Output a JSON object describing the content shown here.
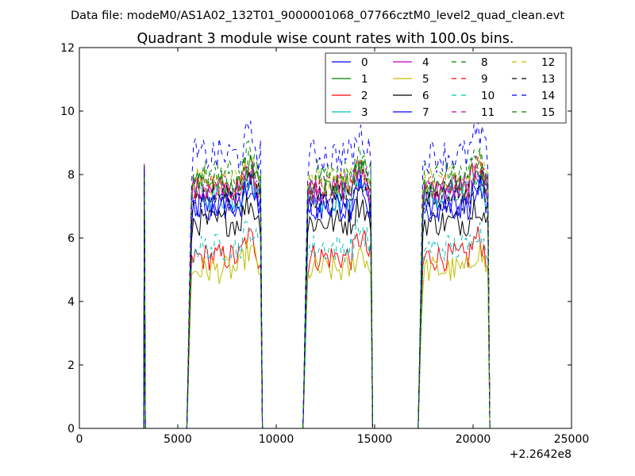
{
  "header": {
    "datafile": "Data file: modeM0/AS1A02_132T01_9000001068_07766cztM0_level2_quad_clean.evt"
  },
  "chart_data": {
    "type": "line",
    "title": "Quadrant 3 module wise count rates with 100.0s bins.",
    "xlabel": "",
    "ylabel": "",
    "x_offset_label": "+2.2642e8",
    "xlim": [
      0,
      25000
    ],
    "ylim": [
      0,
      12
    ],
    "x_ticks": [
      0,
      5000,
      10000,
      15000,
      20000,
      25000
    ],
    "y_ticks": [
      0,
      2,
      4,
      6,
      8,
      10,
      12
    ],
    "x_tick_labels": [
      "0",
      "5000",
      "10000",
      "15000",
      "20000",
      "25000"
    ],
    "y_tick_labels": [
      "0",
      "2",
      "4",
      "6",
      "8",
      "10",
      "12"
    ],
    "grid": false,
    "legend_position": "top-right",
    "legend_columns": 4,
    "segments": [
      {
        "start": 3300,
        "end": 3350,
        "active": [
          3300
        ],
        "spike": 8
      },
      {
        "start": 5500,
        "end": 9300
      },
      {
        "start": 11400,
        "end": 14950
      },
      {
        "start": 17250,
        "end": 20900
      }
    ],
    "series": [
      {
        "name": "0",
        "color": "#0000ff",
        "dash": "solid",
        "level": 7.0,
        "noise": 0.5
      },
      {
        "name": "1",
        "color": "#008000",
        "dash": "solid",
        "level": 7.6,
        "noise": 0.45
      },
      {
        "name": "2",
        "color": "#ff0000",
        "dash": "solid",
        "level": 5.4,
        "noise": 0.45
      },
      {
        "name": "3",
        "color": "#00bfbf",
        "dash": "solid",
        "level": 7.3,
        "noise": 0.5
      },
      {
        "name": "4",
        "color": "#bf00bf",
        "dash": "solid",
        "level": 7.5,
        "noise": 0.45
      },
      {
        "name": "5",
        "color": "#bfbf00",
        "dash": "solid",
        "level": 5.0,
        "noise": 0.45
      },
      {
        "name": "6",
        "color": "#000000",
        "dash": "solid",
        "level": 6.5,
        "noise": 0.45
      },
      {
        "name": "7",
        "color": "#0000ff",
        "dash": "solid",
        "level": 7.0,
        "noise": 0.45
      },
      {
        "name": "8",
        "color": "#008000",
        "dash": "dashed",
        "level": 8.0,
        "noise": 0.5
      },
      {
        "name": "9",
        "color": "#ff0000",
        "dash": "dashed",
        "level": 7.6,
        "noise": 0.45
      },
      {
        "name": "10",
        "color": "#00bfbf",
        "dash": "dashed",
        "level": 5.7,
        "noise": 0.45
      },
      {
        "name": "11",
        "color": "#bf00bf",
        "dash": "dashed",
        "level": 7.6,
        "noise": 0.45
      },
      {
        "name": "12",
        "color": "#bfbf00",
        "dash": "dashed",
        "level": 7.8,
        "noise": 0.45
      },
      {
        "name": "13",
        "color": "#000000",
        "dash": "dashed",
        "level": 7.3,
        "noise": 0.45
      },
      {
        "name": "14",
        "color": "#0000ff",
        "dash": "dashed",
        "level": 8.6,
        "noise": 0.55
      },
      {
        "name": "15",
        "color": "#008000",
        "dash": "dashed",
        "level": 7.8,
        "noise": 0.5
      }
    ]
  }
}
